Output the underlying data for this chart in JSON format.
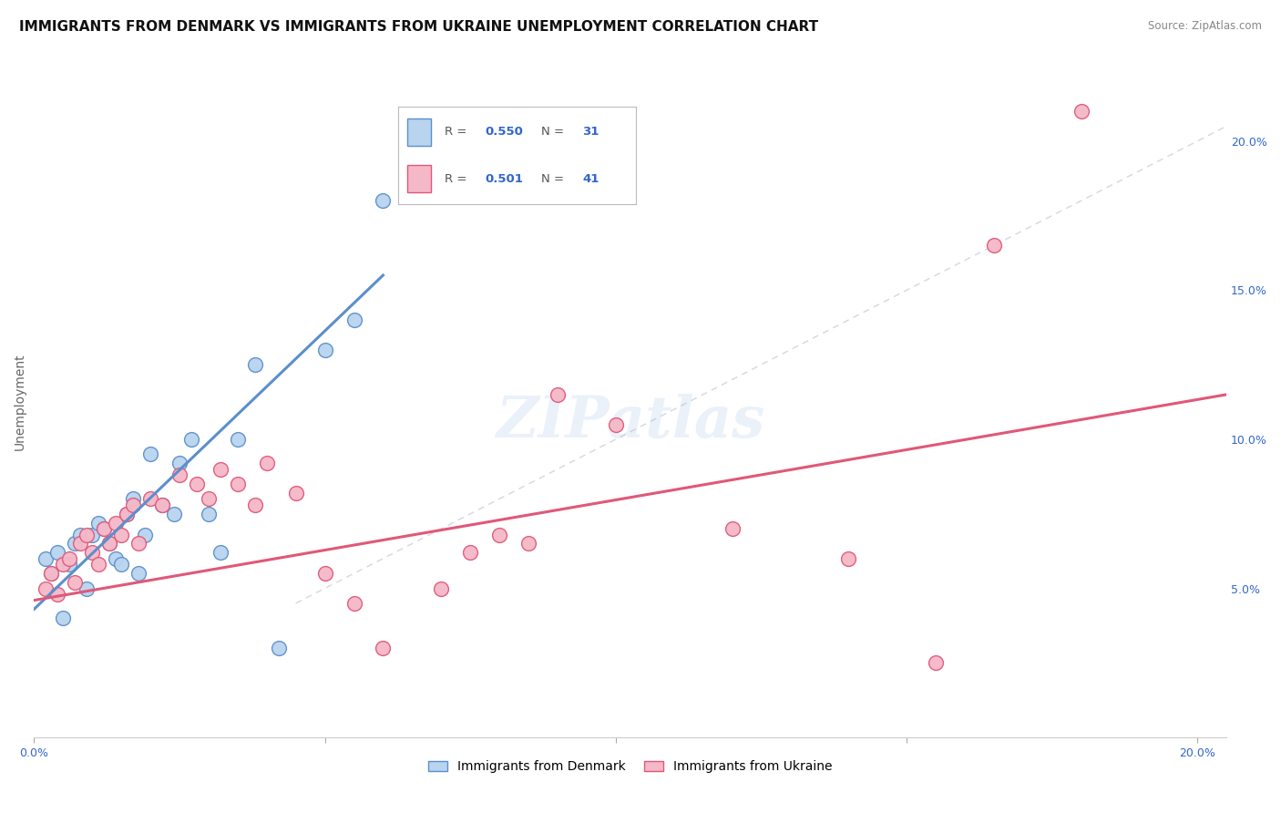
{
  "title": "IMMIGRANTS FROM DENMARK VS IMMIGRANTS FROM UKRAINE UNEMPLOYMENT CORRELATION CHART",
  "source": "Source: ZipAtlas.com",
  "ylabel": "Unemployment",
  "xlim": [
    0.0,
    0.205
  ],
  "ylim": [
    0.0,
    0.225
  ],
  "yticks_right": [
    0.05,
    0.1,
    0.15,
    0.2
  ],
  "yticklabels_right": [
    "5.0%",
    "10.0%",
    "15.0%",
    "20.0%"
  ],
  "denmark_color": "#b8d4ee",
  "denmark_edge": "#5b8fcc",
  "ukraine_color": "#f5b8c8",
  "ukraine_edge": "#e05878",
  "denmark_R": 0.55,
  "denmark_N": 31,
  "ukraine_R": 0.501,
  "ukraine_N": 41,
  "background_color": "#ffffff",
  "grid_color": "#d0d0d0",
  "watermark": "ZIPatlas",
  "denmark_scatter_x": [
    0.002,
    0.003,
    0.004,
    0.005,
    0.006,
    0.007,
    0.008,
    0.009,
    0.01,
    0.011,
    0.012,
    0.013,
    0.014,
    0.015,
    0.016,
    0.017,
    0.018,
    0.019,
    0.02,
    0.022,
    0.024,
    0.025,
    0.027,
    0.03,
    0.032,
    0.035,
    0.038,
    0.042,
    0.05,
    0.055,
    0.06
  ],
  "denmark_scatter_y": [
    0.06,
    0.055,
    0.062,
    0.04,
    0.058,
    0.065,
    0.068,
    0.05,
    0.068,
    0.072,
    0.07,
    0.065,
    0.06,
    0.058,
    0.075,
    0.08,
    0.055,
    0.068,
    0.095,
    0.078,
    0.075,
    0.092,
    0.1,
    0.075,
    0.062,
    0.1,
    0.125,
    0.03,
    0.13,
    0.14,
    0.18
  ],
  "ukraine_scatter_x": [
    0.002,
    0.003,
    0.004,
    0.005,
    0.006,
    0.007,
    0.008,
    0.009,
    0.01,
    0.011,
    0.012,
    0.013,
    0.014,
    0.015,
    0.016,
    0.017,
    0.018,
    0.02,
    0.022,
    0.025,
    0.028,
    0.03,
    0.032,
    0.035,
    0.038,
    0.04,
    0.045,
    0.05,
    0.055,
    0.06,
    0.07,
    0.075,
    0.08,
    0.085,
    0.09,
    0.1,
    0.12,
    0.14,
    0.155,
    0.165,
    0.18
  ],
  "ukraine_scatter_y": [
    0.05,
    0.055,
    0.048,
    0.058,
    0.06,
    0.052,
    0.065,
    0.068,
    0.062,
    0.058,
    0.07,
    0.065,
    0.072,
    0.068,
    0.075,
    0.078,
    0.065,
    0.08,
    0.078,
    0.088,
    0.085,
    0.08,
    0.09,
    0.085,
    0.078,
    0.092,
    0.082,
    0.055,
    0.045,
    0.03,
    0.05,
    0.062,
    0.068,
    0.065,
    0.115,
    0.105,
    0.07,
    0.06,
    0.025,
    0.165,
    0.21
  ],
  "denmark_line_x": [
    0.0,
    0.06
  ],
  "denmark_line_y": [
    0.043,
    0.155
  ],
  "ukraine_line_x": [
    0.0,
    0.205
  ],
  "ukraine_line_y": [
    0.046,
    0.115
  ],
  "ref_line_x": [
    0.045,
    0.205
  ],
  "ref_line_y": [
    0.045,
    0.205
  ],
  "title_fontsize": 11,
  "axis_label_fontsize": 10,
  "tick_fontsize": 9,
  "legend_fontsize": 10
}
